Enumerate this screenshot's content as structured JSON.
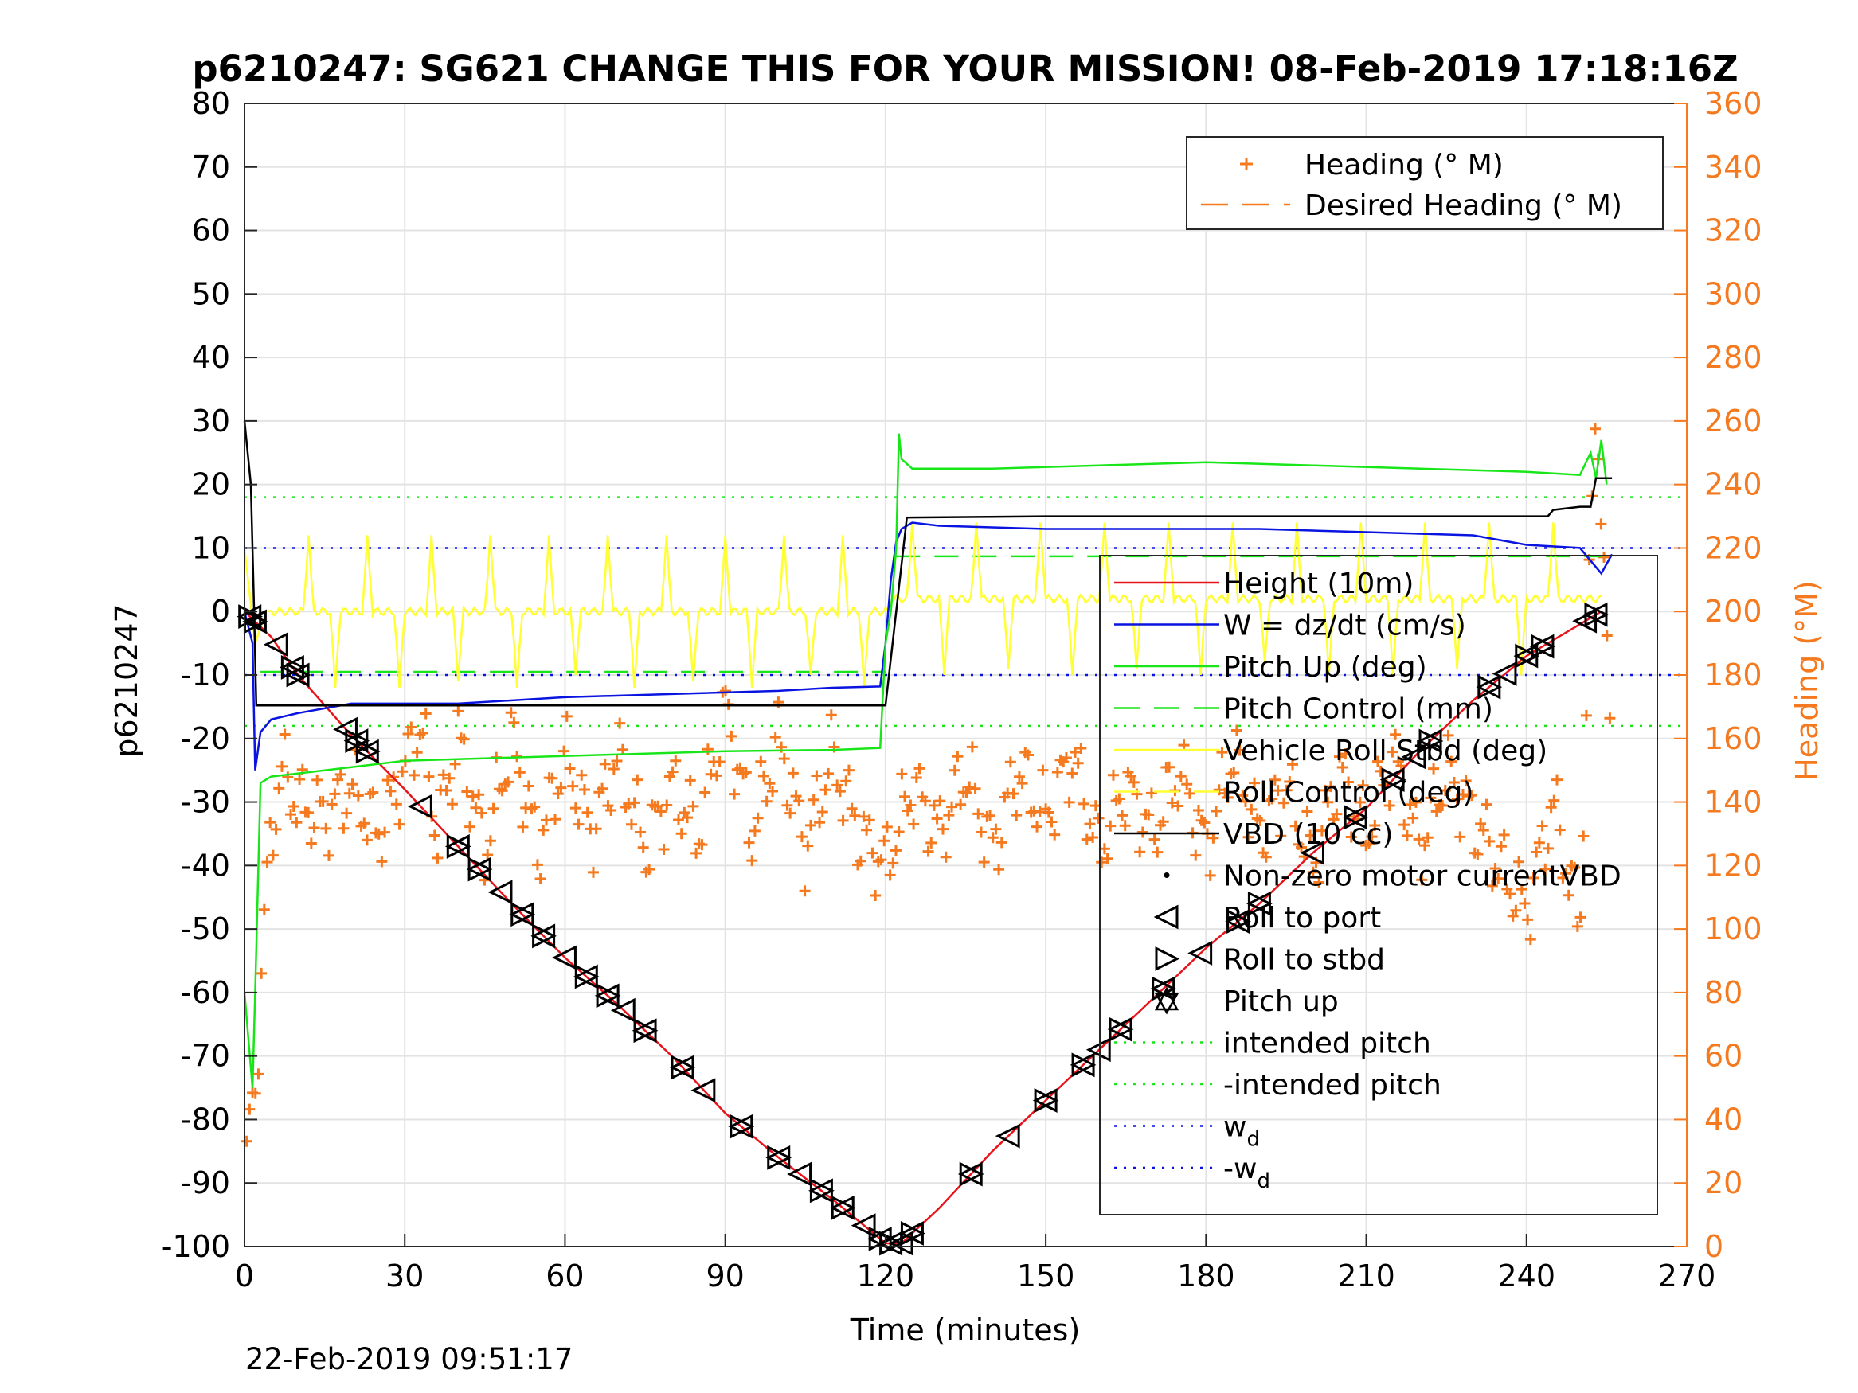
{
  "chart_data": {
    "type": "line",
    "title": "p6210247: SG621 CHANGE THIS FOR YOUR MISSION! 08-Feb-2019 17:18:16Z",
    "xlabel": "Time (minutes)",
    "ylabel": "p6210247",
    "y2label": "Heading (°M)",
    "xlim": [
      0,
      270
    ],
    "ylim": [
      -100,
      80
    ],
    "y2lim": [
      0,
      360
    ],
    "xticks": [
      0,
      30,
      60,
      90,
      120,
      150,
      180,
      210,
      240,
      270
    ],
    "yticks": [
      -100,
      -90,
      -80,
      -70,
      -60,
      -50,
      -40,
      -30,
      -20,
      -10,
      0,
      10,
      20,
      30,
      40,
      50,
      60,
      70,
      80
    ],
    "y2ticks": [
      0,
      20,
      40,
      60,
      80,
      100,
      120,
      140,
      160,
      180,
      200,
      220,
      240,
      260,
      280,
      300,
      320,
      340,
      360
    ],
    "grid": true,
    "timestamp": "22-Feb-2019 09:51:17",
    "legend_right": {
      "placement": "top-right",
      "entries": [
        {
          "label": "Heading (° M)",
          "color": "#f57a1f",
          "marker": "+"
        },
        {
          "label": "Desired Heading (° M)",
          "color": "#f57a1f",
          "style": "dashed"
        }
      ]
    },
    "legend_main": {
      "placement": "center-right",
      "entries": [
        {
          "label": "Height (10m)",
          "color": "#e8141b",
          "style": "solid"
        },
        {
          "label": "W = dz/dt (cm/s)",
          "color": "#0a14e0",
          "style": "solid"
        },
        {
          "label": "Pitch Up (deg)",
          "color": "#19e619",
          "style": "solid"
        },
        {
          "label": "Pitch Control (mm)",
          "color": "#19e619",
          "style": "dashed"
        },
        {
          "label": "Vehicle Roll Stbd (deg)",
          "color": "#ffff33",
          "style": "solid"
        },
        {
          "label": "Roll Control (deg)",
          "color": "#ffff33",
          "style": "dashed"
        },
        {
          "label": "VBD (10 cc)",
          "color": "#000000",
          "style": "solid"
        },
        {
          "label": "Non-zero motor currentVBD",
          "color": "#000000",
          "marker": "dot"
        },
        {
          "label": "Roll to port",
          "color": "#000000",
          "marker": "triangle-left"
        },
        {
          "label": "Roll to stbd",
          "color": "#000000",
          "marker": "triangle-right"
        },
        {
          "label": "Pitch up",
          "color": "#000000",
          "marker": "star"
        },
        {
          "label": "intended pitch",
          "color": "#19e619",
          "style": "dotted"
        },
        {
          "label": "-intended pitch",
          "color": "#19e619",
          "style": "dotted"
        },
        {
          "label": "w",
          "sub": "d",
          "color": "#0a14e0",
          "style": "dotted"
        },
        {
          "label": "-w",
          "sub": "d",
          "color": "#0a14e0",
          "style": "dotted"
        }
      ]
    },
    "series": [
      {
        "name": "Height (10m)",
        "color": "#e8141b",
        "x": [
          0,
          5,
          10,
          20,
          30,
          40,
          50,
          60,
          70,
          80,
          90,
          100,
          110,
          120,
          123,
          130,
          140,
          150,
          160,
          170,
          180,
          190,
          200,
          210,
          220,
          230,
          240,
          250,
          254
        ],
        "y": [
          0,
          -4,
          -10,
          -19.5,
          -28,
          -37,
          -46,
          -54.5,
          -62,
          -70,
          -79,
          -86,
          -92.5,
          -99.5,
          -99.5,
          -94,
          -85,
          -77,
          -69,
          -61,
          -53,
          -46,
          -38,
          -31,
          -22,
          -14,
          -7,
          -2,
          0
        ]
      },
      {
        "name": "W = dz/dt (cm/s)",
        "color": "#0a14e0",
        "x": [
          0,
          1.5,
          2,
          3,
          5,
          10,
          20,
          30,
          40,
          60,
          80,
          100,
          110,
          119,
          120,
          121,
          122,
          123,
          125,
          130,
          150,
          170,
          190,
          210,
          230,
          240,
          250,
          252,
          254,
          256
        ],
        "y": [
          0,
          -5,
          -25,
          -19,
          -17,
          -16,
          -14.5,
          -14.5,
          -14.5,
          -13.5,
          -13,
          -12.5,
          -12,
          -11.8,
          -5,
          5,
          11,
          13,
          14,
          13.5,
          13,
          13,
          13,
          12.5,
          12,
          10.5,
          10,
          8,
          6,
          9
        ]
      },
      {
        "name": "Pitch Up (deg)",
        "color": "#19e619",
        "x": [
          0,
          1.5,
          2,
          3,
          5,
          15,
          30,
          50,
          70,
          90,
          110,
          119,
          120,
          121,
          122,
          122.5,
          123,
          125,
          140,
          160,
          180,
          200,
          220,
          240,
          250,
          252,
          253,
          254,
          255
        ],
        "y": [
          -60,
          -75,
          -60,
          -27,
          -26,
          -25,
          -23.5,
          -23,
          -22.5,
          -22,
          -21.8,
          -21.5,
          -5,
          0,
          10,
          28,
          24,
          22.5,
          22.5,
          23,
          23.5,
          23,
          22.5,
          22,
          21.5,
          25,
          21,
          27,
          20
        ]
      },
      {
        "name": "VBD (10 cc)",
        "color": "#000000",
        "x": [
          0,
          1.2,
          1.8,
          2.2,
          30,
          60,
          90,
          119,
          120,
          122,
          124,
          150,
          180,
          210,
          240,
          244,
          245,
          250,
          252,
          253,
          254,
          256
        ],
        "y": [
          30,
          20,
          0,
          -14.8,
          -14.8,
          -14.8,
          -14.8,
          -14.8,
          -14.8,
          0,
          14.8,
          15,
          15,
          15,
          15,
          15,
          16,
          16.5,
          16.5,
          21,
          21,
          21
        ]
      }
    ],
    "reference_lines": [
      {
        "name": "intended pitch",
        "y": 18,
        "color": "#19e619"
      },
      {
        "name": "-intended pitch",
        "y": -18,
        "color": "#19e619"
      },
      {
        "name": "w_d",
        "y": 10,
        "color": "#0a14e0"
      },
      {
        "name": "-w_d",
        "y": -10,
        "color": "#0a14e0"
      }
    ],
    "pitch_control": [
      {
        "x": [
          3,
          120
        ],
        "y": -9.5
      },
      {
        "x": [
          122,
          254
        ],
        "y": 8.7
      }
    ],
    "roll_baseline": [
      {
        "x": [
          5,
          120
        ],
        "y": 0
      },
      {
        "x": [
          122,
          254
        ],
        "y": 2
      }
    ],
    "roll_spike_times": [
      12,
      17,
      23,
      29,
      35,
      40,
      46,
      51,
      57,
      62,
      68,
      73,
      79,
      84,
      90,
      95,
      101,
      106,
      112,
      116,
      125,
      131,
      137,
      143,
      149,
      155,
      161,
      167,
      173,
      179,
      185,
      191,
      197,
      203,
      209,
      215,
      221,
      227,
      233,
      239,
      245
    ],
    "roll_spike_heights": [
      12,
      -12,
      12,
      -12,
      12,
      -11,
      12,
      -12,
      12,
      -10,
      12,
      -12,
      12,
      -11,
      12,
      -12,
      12,
      -10,
      12,
      -12,
      12,
      -12,
      12,
      -11,
      12,
      -12,
      12,
      -11,
      12,
      -12,
      12,
      -10,
      12,
      -12,
      12,
      -12,
      12,
      -11,
      12,
      -12,
      12
    ],
    "heading": {
      "x": [
        0,
        1,
        2,
        3,
        4,
        5,
        7,
        10,
        15,
        20,
        25,
        30,
        33,
        36,
        40,
        45,
        50,
        55,
        60,
        65,
        70,
        75,
        80,
        85,
        90,
        95,
        100,
        105,
        110,
        115,
        120,
        125,
        130,
        135,
        140,
        145,
        150,
        155,
        160,
        165,
        170,
        175,
        180,
        185,
        190,
        195,
        200,
        205,
        210,
        215,
        220,
        225,
        230,
        235,
        240,
        245,
        250,
        252,
        253,
        254,
        255,
        256
      ],
      "y": [
        10,
        40,
        50,
        80,
        110,
        130,
        150,
        140,
        135,
        145,
        130,
        150,
        165,
        130,
        160,
        125,
        160,
        125,
        155,
        130,
        155,
        125,
        145,
        130,
        170,
        130,
        160,
        125,
        155,
        130,
        120,
        145,
        130,
        150,
        125,
        150,
        135,
        155,
        125,
        145,
        130,
        150,
        125,
        155,
        130,
        145,
        120,
        150,
        130,
        155,
        125,
        150,
        135,
        120,
        105,
        140,
        100,
        220,
        260,
        240,
        190,
        140
      ]
    }
  }
}
